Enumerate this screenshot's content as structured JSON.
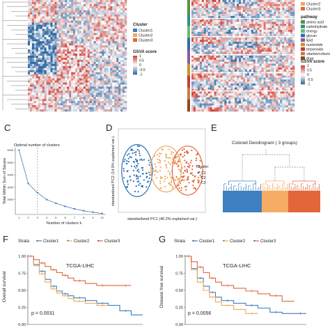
{
  "panels": {
    "heat_left": {
      "legend": {
        "cluster_title": "Cluster",
        "clusters": [
          {
            "label": "Cluster1",
            "color": "#3d7fc0"
          },
          {
            "label": "Cluster2",
            "color": "#f0a85a"
          },
          {
            "label": "Cluster3",
            "color": "#e2663a"
          }
        ],
        "gsva_title": "GSVA score",
        "gsva_ticks": [
          "1",
          "0.5",
          "0",
          "-0.5",
          "-1"
        ]
      }
    },
    "heat_right": {
      "legend": {
        "cluster_items": [
          "Cluster2",
          "Cluster3"
        ],
        "pathway_title": "pathway",
        "pathways": [
          {
            "label": "amino acid",
            "color": "#5a8f3c"
          },
          {
            "label": "carbohydrate",
            "color": "#2f8f86"
          },
          {
            "label": "energy",
            "color": "#6fb86e"
          },
          {
            "label": "glycan",
            "color": "#2d6ea8"
          },
          {
            "label": "lipid",
            "color": "#8e5a9c"
          },
          {
            "label": "nucleotide",
            "color": "#c7932e"
          },
          {
            "label": "terpenoids",
            "color": "#c43c3c"
          },
          {
            "label": "vitamin/cofactor",
            "color": "#c08040"
          },
          {
            "label": "drug",
            "color": "#8a4b1f"
          }
        ],
        "gsva_title": "GSVA score",
        "gsva_ticks": [
          "1",
          "0.5",
          "0",
          "-0.5",
          "-1"
        ]
      }
    },
    "C": {
      "letter": "C",
      "chart_data": {
        "type": "line",
        "title": "Optimal number of clusters",
        "xlabel": "Number of clusters k",
        "ylabel": "Total Within Sum of Square",
        "x": [
          1,
          2,
          3,
          4,
          5,
          6,
          7,
          8,
          9,
          10
        ],
        "values": [
          6000,
          3300,
          2550,
          2000,
          1700,
          1450,
          1250,
          1100,
          980,
          880
        ],
        "yticks": [
          2000,
          3000,
          4000,
          5000,
          6000
        ],
        "xticks": [
          1,
          2,
          3,
          4,
          5,
          6,
          7,
          8,
          9,
          10
        ],
        "ylim": [
          800,
          6200
        ],
        "optimal_k": 3,
        "color": "#4a7bb7"
      }
    },
    "D": {
      "letter": "D",
      "chart_data": {
        "type": "scatter",
        "xlabel": "standardized PC1 (40.2% explained var.)",
        "ylabel": "standardized PC2 (14.0% explained var.)",
        "legend_title": "Cluster",
        "series": [
          {
            "name": "C1",
            "color": "#2b6fb6",
            "center": [
              -1.6,
              0.0
            ],
            "radius": [
              1.0,
              1.7
            ]
          },
          {
            "name": "C2",
            "color": "#f0a85a",
            "center": [
              0.3,
              0.1
            ],
            "radius": [
              1.0,
              1.5
            ]
          },
          {
            "name": "C3",
            "color": "#e2663a",
            "center": [
              1.7,
              0.0
            ],
            "radius": [
              1.0,
              1.6
            ]
          }
        ],
        "points_per_series": 95
      }
    },
    "E": {
      "letter": "E",
      "title": "Colored Dendrogram ( 3  groups)",
      "groups": [
        {
          "color": "#3d7fc0",
          "share": 0.4
        },
        {
          "color": "#f5ad64",
          "share": 0.27
        },
        {
          "color": "#e2663a",
          "share": 0.33
        }
      ]
    },
    "F": {
      "letter": "F",
      "strata_label": "Strata",
      "chart_data": {
        "type": "line",
        "ylabel": "Overall survival",
        "yticks": [
          "0.00",
          "0.25",
          "0.50",
          "0.75",
          "1.00"
        ],
        "ylim": [
          0,
          1
        ],
        "xlim": [
          0,
          10
        ],
        "annotation": "TCGA-LIHC",
        "p_value": "p = 0.0031",
        "series": [
          {
            "name": "Cluster1",
            "color": "#3d7fc0",
            "x": [
              0,
              0.5,
              1,
              1.5,
              2,
              2.5,
              3,
              3.5,
              4,
              5,
              6,
              7,
              8,
              9,
              10
            ],
            "values": [
              1.0,
              0.88,
              0.78,
              0.66,
              0.56,
              0.49,
              0.45,
              0.42,
              0.39,
              0.35,
              0.31,
              0.28,
              0.2,
              0.14,
              0.14
            ]
          },
          {
            "name": "Cluster2",
            "color": "#f0a85a",
            "x": [
              0,
              0.5,
              1,
              1.5,
              2,
              2.5,
              3,
              3.5,
              4,
              5,
              6,
              7
            ],
            "values": [
              1.0,
              0.86,
              0.74,
              0.62,
              0.52,
              0.46,
              0.42,
              0.38,
              0.34,
              0.31,
              0.28,
              0.28
            ]
          },
          {
            "name": "Cluster3",
            "color": "#e2663a",
            "x": [
              0,
              0.5,
              1,
              1.5,
              2,
              2.5,
              3,
              3.5,
              4,
              5,
              6,
              7,
              8,
              9
            ],
            "values": [
              1.0,
              0.95,
              0.9,
              0.85,
              0.8,
              0.76,
              0.72,
              0.68,
              0.64,
              0.6,
              0.57,
              0.57,
              0.57,
              0.57
            ]
          }
        ]
      }
    },
    "G": {
      "letter": "G",
      "strata_label": "Strata",
      "chart_data": {
        "type": "line",
        "ylabel": "Disease free survival",
        "yticks": [
          "0.00",
          "0.25",
          "0.50",
          "0.75",
          "1.00"
        ],
        "ylim": [
          0,
          1
        ],
        "xlim": [
          0,
          10
        ],
        "annotation": "TCGA-LIHC",
        "p_value": "p = 0.0056",
        "series": [
          {
            "name": "Cluster1",
            "color": "#3d7fc0",
            "x": [
              0,
              0.5,
              1,
              1.5,
              2,
              2.5,
              3,
              4,
              5,
              6,
              7,
              8,
              9,
              10
            ],
            "values": [
              1.0,
              0.82,
              0.68,
              0.56,
              0.47,
              0.4,
              0.35,
              0.31,
              0.28,
              0.24,
              0.18,
              0.16,
              0.16,
              0.16
            ]
          },
          {
            "name": "Cluster2",
            "color": "#f0a85a",
            "x": [
              0,
              0.5,
              1,
              1.5,
              2,
              2.5,
              3,
              4,
              5,
              6
            ],
            "values": [
              1.0,
              0.8,
              0.62,
              0.5,
              0.4,
              0.33,
              0.28,
              0.22,
              0.16,
              0.16
            ]
          },
          {
            "name": "Cluster3",
            "color": "#e2663a",
            "x": [
              0,
              0.5,
              1,
              1.5,
              2,
              2.5,
              3,
              4,
              5,
              6,
              7,
              8,
              9
            ],
            "values": [
              1.0,
              0.92,
              0.84,
              0.76,
              0.68,
              0.62,
              0.57,
              0.53,
              0.49,
              0.45,
              0.42,
              0.34,
              0.34
            ]
          }
        ]
      }
    }
  }
}
